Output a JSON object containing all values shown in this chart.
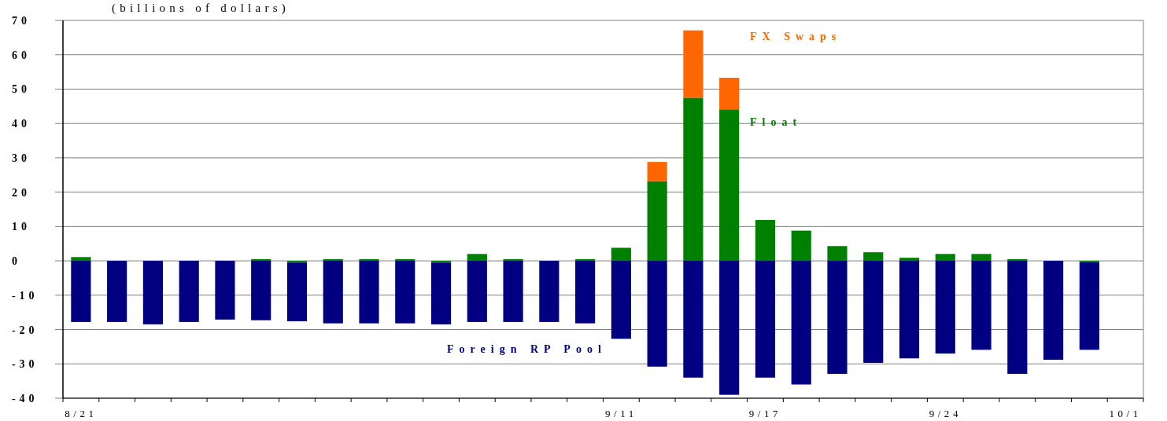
{
  "chart_data": {
    "type": "bar",
    "stacked": true,
    "title": "(billions of dollars)",
    "categories": [
      "8/21",
      null,
      null,
      null,
      null,
      null,
      null,
      null,
      null,
      null,
      null,
      null,
      null,
      null,
      null,
      "9/11",
      null,
      null,
      null,
      "9/17",
      null,
      null,
      null,
      null,
      "9/24",
      null,
      null,
      null,
      null,
      "10/1"
    ],
    "series": [
      {
        "name": "Float",
        "color": "#008000",
        "values": [
          1.1,
          0,
          0,
          0,
          0,
          0.5,
          -0.5,
          0.5,
          0.5,
          0.5,
          -0.5,
          2.0,
          0.5,
          0,
          0.5,
          3.8,
          23.2,
          47.5,
          44.1,
          11.9,
          8.8,
          4.3,
          2.5,
          0.9,
          2.0,
          2.0,
          0.5,
          0,
          -0.3,
          null
        ]
      },
      {
        "name": "FX Swaps",
        "color": "#ff6600",
        "values": [
          0,
          0,
          0,
          0,
          0,
          0,
          0,
          0,
          0,
          0,
          0,
          0,
          0,
          0,
          0,
          0,
          5.6,
          19.6,
          9.2,
          0,
          0,
          0,
          0,
          0,
          0,
          0,
          0,
          0,
          0,
          null
        ]
      },
      {
        "name": "Foreign RP Pool",
        "color": "#000080",
        "values": [
          -17.8,
          -17.8,
          -18.5,
          -17.8,
          -17.1,
          -17.3,
          -17.1,
          -18.2,
          -18.2,
          -18.2,
          -18.0,
          -17.8,
          -17.8,
          -17.8,
          -18.2,
          -22.7,
          -30.8,
          -34,
          -39,
          -34,
          -36,
          -32.9,
          -29.7,
          -28.4,
          -27,
          -25.9,
          -32.9,
          -28.8,
          -25.6,
          null
        ]
      }
    ],
    "ylim": [
      -40,
      70
    ],
    "yticks": [
      -40,
      -30,
      -20,
      -10,
      0,
      10,
      20,
      30,
      40,
      50,
      60,
      70
    ],
    "grid": "y",
    "legend": false
  }
}
